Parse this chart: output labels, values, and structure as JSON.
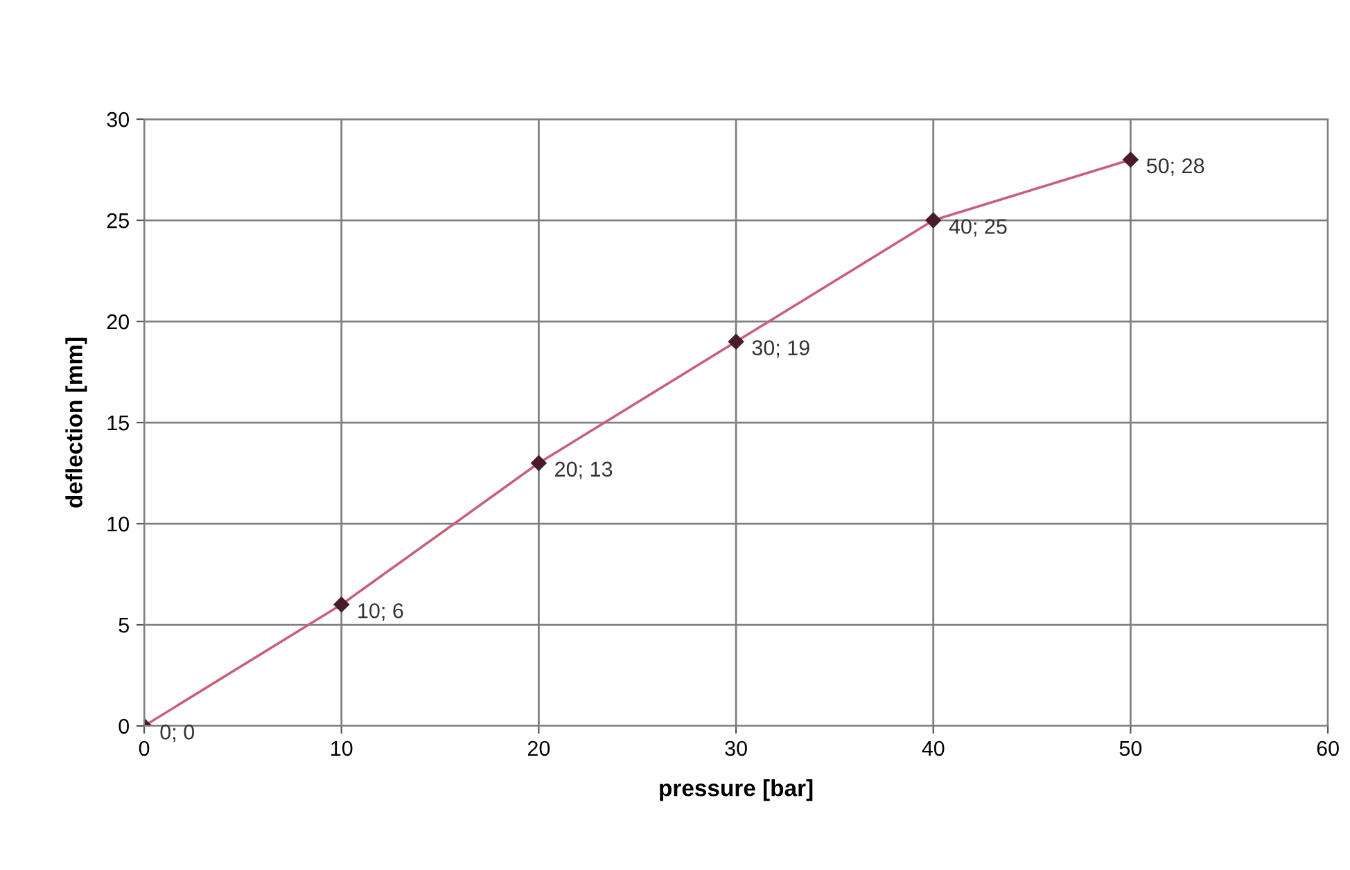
{
  "chart_data": {
    "type": "line",
    "xlabel": "pressure [bar]",
    "ylabel": "deflection [mm]",
    "x": [
      0,
      10,
      20,
      30,
      40,
      50
    ],
    "series": [
      {
        "color": "#c8607a",
        "values": [
          0,
          6,
          13,
          19,
          25,
          28
        ],
        "value_labels": [
          "0; 0",
          "10; 6",
          "20; 13",
          "30; 19",
          "40; 25",
          "50; 28"
        ]
      }
    ],
    "xlim": [
      0,
      60
    ],
    "xticks": [
      0,
      10,
      20,
      30,
      40,
      50,
      60
    ],
    "ylim": [
      0,
      30
    ],
    "yticks": [
      0,
      5,
      10,
      15,
      20,
      25,
      30
    ],
    "grid": true,
    "marker": "diamond",
    "line_style": "solid"
  }
}
